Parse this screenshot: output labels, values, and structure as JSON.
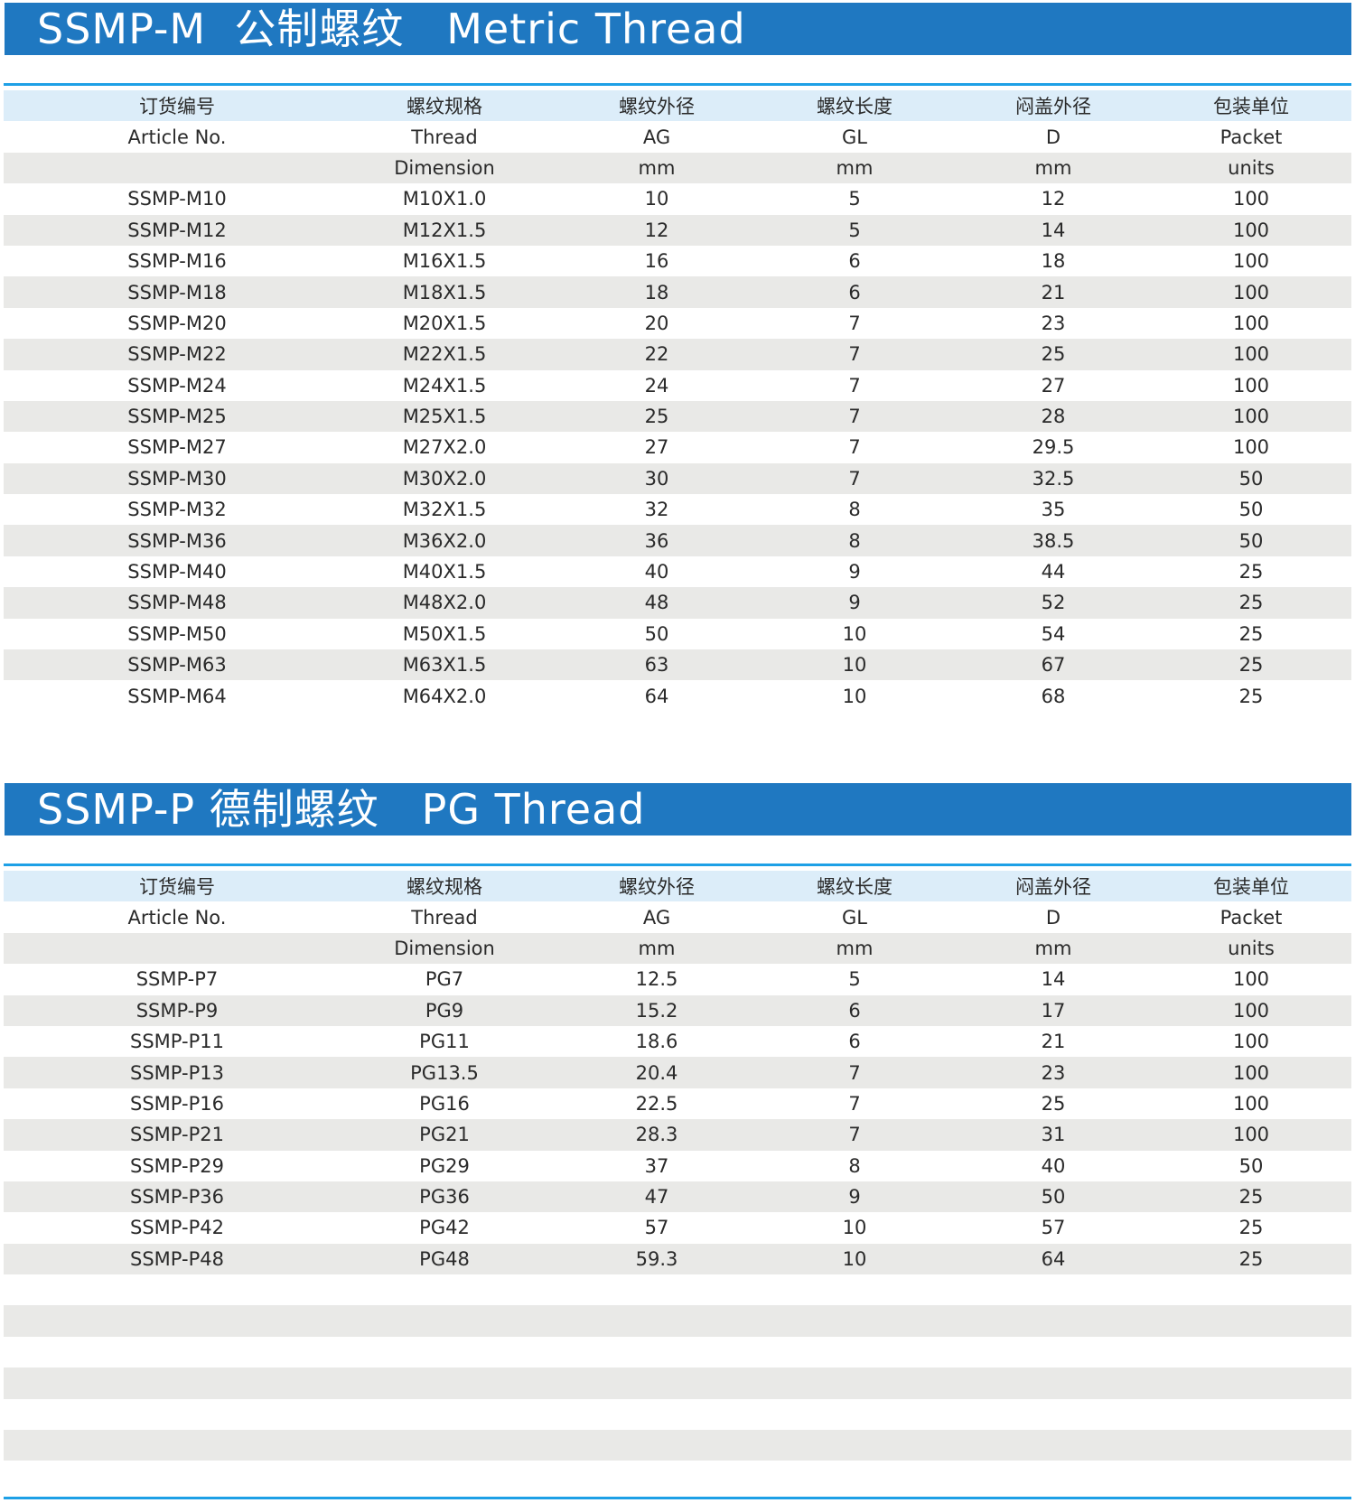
{
  "sections": [
    {
      "title": "SSMP-M  公制螺纹   Metric Thread",
      "headers": [
        [
          "订货编号",
          "螺纹规格",
          "螺纹外径",
          "螺纹长度",
          "闷盖外径",
          "包装单位"
        ],
        [
          "Article No.",
          "Thread",
          "AG",
          "GL",
          "D",
          "Packet"
        ],
        [
          "",
          "Dimension",
          "mm",
          "mm",
          "mm",
          "units"
        ]
      ],
      "rows": [
        [
          "SSMP-M10",
          "M10X1.0",
          "10",
          "5",
          "12",
          "100"
        ],
        [
          "SSMP-M12",
          "M12X1.5",
          "12",
          "5",
          "14",
          "100"
        ],
        [
          "SSMP-M16",
          "M16X1.5",
          "16",
          "6",
          "18",
          "100"
        ],
        [
          "SSMP-M18",
          "M18X1.5",
          "18",
          "6",
          "21",
          "100"
        ],
        [
          "SSMP-M20",
          "M20X1.5",
          "20",
          "7",
          "23",
          "100"
        ],
        [
          "SSMP-M22",
          "M22X1.5",
          "22",
          "7",
          "25",
          "100"
        ],
        [
          "SSMP-M24",
          "M24X1.5",
          "24",
          "7",
          "27",
          "100"
        ],
        [
          "SSMP-M25",
          "M25X1.5",
          "25",
          "7",
          "28",
          "100"
        ],
        [
          "SSMP-M27",
          "M27X2.0",
          "27",
          "7",
          "29.5",
          "100"
        ],
        [
          "SSMP-M30",
          "M30X2.0",
          "30",
          "7",
          "32.5",
          "50"
        ],
        [
          "SSMP-M32",
          "M32X1.5",
          "32",
          "8",
          "35",
          "50"
        ],
        [
          "SSMP-M36",
          "M36X2.0",
          "36",
          "8",
          "38.5",
          "50"
        ],
        [
          "SSMP-M40",
          "M40X1.5",
          "40",
          "9",
          "44",
          "25"
        ],
        [
          "SSMP-M48",
          "M48X2.0",
          "48",
          "9",
          "52",
          "25"
        ],
        [
          "SSMP-M50",
          "M50X1.5",
          "50",
          "10",
          "54",
          "25"
        ],
        [
          "SSMP-M63",
          "M63X1.5",
          "63",
          "10",
          "67",
          "25"
        ],
        [
          "SSMP-M64",
          "M64X2.0",
          "64",
          "10",
          "68",
          "25"
        ]
      ]
    },
    {
      "title": "SSMP-P 德制螺纹   PG Thread",
      "headers": [
        [
          "订货编号",
          "螺纹规格",
          "螺纹外径",
          "螺纹长度",
          "闷盖外径",
          "包装单位"
        ],
        [
          "Article No.",
          "Thread",
          "AG",
          "GL",
          "D",
          "Packet"
        ],
        [
          "",
          "Dimension",
          "mm",
          "mm",
          "mm",
          "units"
        ]
      ],
      "rows": [
        [
          "SSMP-P7",
          "PG7",
          "12.5",
          "5",
          "14",
          "100"
        ],
        [
          "SSMP-P9",
          "PG9",
          "15.2",
          "6",
          "17",
          "100"
        ],
        [
          "SSMP-P11",
          "PG11",
          "18.6",
          "6",
          "21",
          "100"
        ],
        [
          "SSMP-P13",
          "PG13.5",
          "20.4",
          "7",
          "23",
          "100"
        ],
        [
          "SSMP-P16",
          "PG16",
          "22.5",
          "7",
          "25",
          "100"
        ],
        [
          "SSMP-P21",
          "PG21",
          "28.3",
          "7",
          "31",
          "100"
        ],
        [
          "SSMP-P29",
          "PG29",
          "37",
          "8",
          "40",
          "50"
        ],
        [
          "SSMP-P36",
          "PG36",
          "47",
          "9",
          "50",
          "25"
        ],
        [
          "SSMP-P42",
          "PG42",
          "57",
          "10",
          "57",
          "25"
        ],
        [
          "SSMP-P48",
          "PG48",
          "59.3",
          "10",
          "64",
          "25"
        ]
      ]
    }
  ],
  "colors": {
    "banner": "#1f78c1",
    "rule": "#1ea0e6",
    "header_row": "#dcedf9",
    "stripe": "#e9e9e7"
  }
}
